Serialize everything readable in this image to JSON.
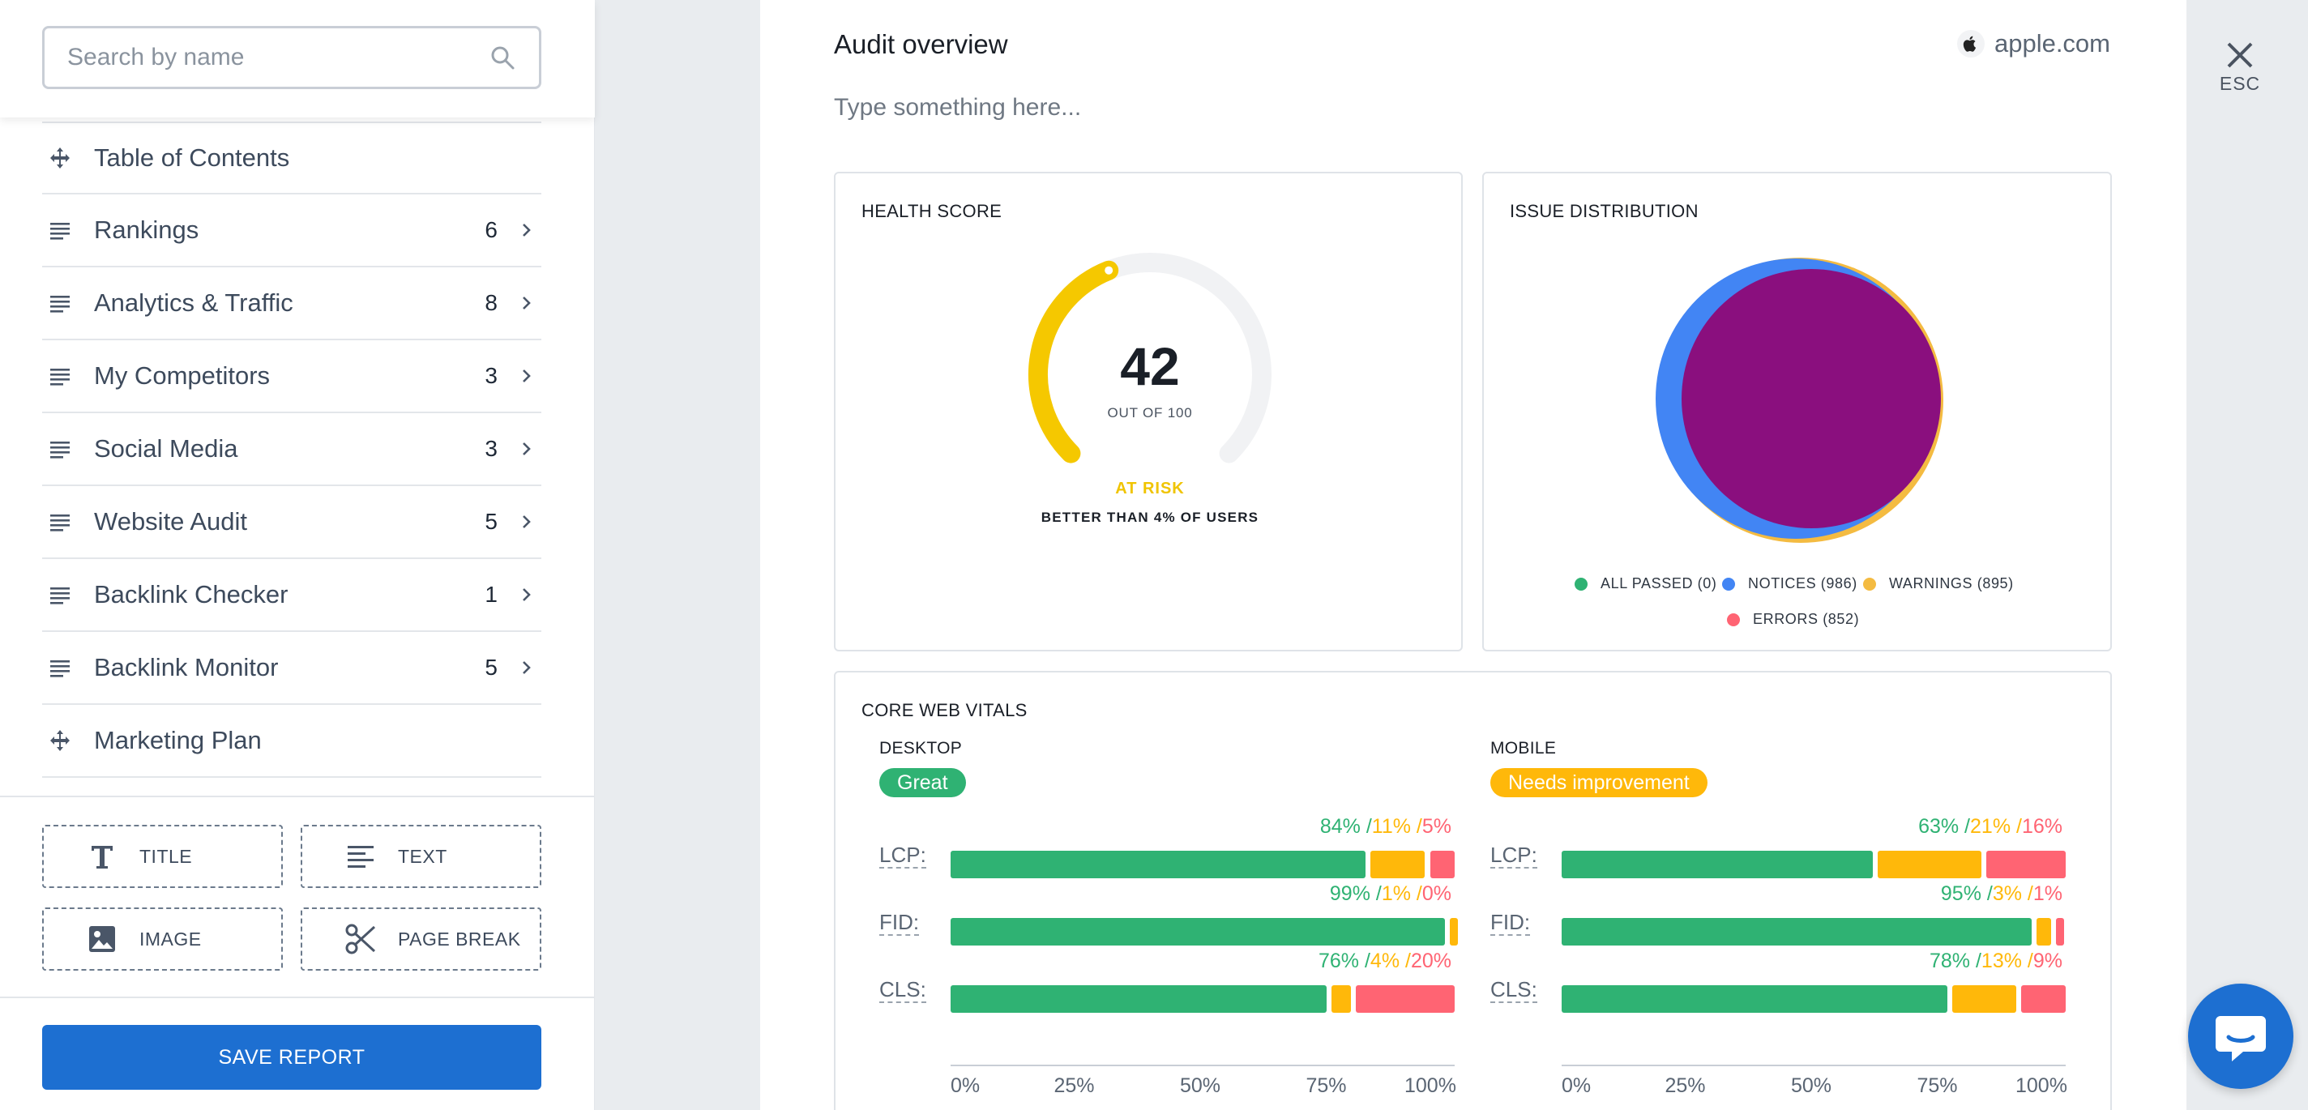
{
  "search": {
    "placeholder": "Search by name"
  },
  "sidebar": {
    "items": [
      {
        "label": "Table of Contents",
        "count": "",
        "icon": "move-icon"
      },
      {
        "label": "Rankings",
        "count": "6",
        "icon": "lines-icon"
      },
      {
        "label": "Analytics & Traffic",
        "count": "8",
        "icon": "lines-icon"
      },
      {
        "label": "My Competitors",
        "count": "3",
        "icon": "lines-icon"
      },
      {
        "label": "Social Media",
        "count": "3",
        "icon": "lines-icon"
      },
      {
        "label": "Website Audit",
        "count": "5",
        "icon": "lines-icon"
      },
      {
        "label": "Backlink Checker",
        "count": "1",
        "icon": "lines-icon"
      },
      {
        "label": "Backlink Monitor",
        "count": "5",
        "icon": "lines-icon"
      },
      {
        "label": "Marketing Plan",
        "count": "",
        "icon": "move-icon"
      }
    ],
    "blocks": {
      "title": "TITLE",
      "text": "TEXT",
      "image": "IMAGE",
      "page_break": "PAGE BREAK"
    },
    "save_label": "SAVE REPORT"
  },
  "panel": {
    "title": "Audit overview",
    "domain": "apple.com",
    "description_placeholder": "Type something here...",
    "close_label": "ESC"
  },
  "health": {
    "title": "HEALTH SCORE",
    "score": "42",
    "out_of": "OUT OF 100",
    "score_value": 42,
    "score_max": 100,
    "status": "AT RISK",
    "comparison": "BETTER THAN 4% OF USERS",
    "gauge_color": "#f5c800",
    "track_color": "#f1f2f4"
  },
  "issues": {
    "title": "ISSUE DISTRIBUTION",
    "legend": [
      {
        "label": "ALL PASSED (0)",
        "color": "#2fb273",
        "value": 0
      },
      {
        "label": "NOTICES (986)",
        "color": "#4285f4",
        "value": 986
      },
      {
        "label": "WARNINGS (895)",
        "color": "#f4bb41",
        "value": 895
      },
      {
        "label": "ERRORS (852)",
        "color": "#ff6473",
        "value": 852
      }
    ],
    "pie_fill_color": "#8a0f7e"
  },
  "cwv": {
    "title": "CORE WEB VITALS",
    "colors": {
      "good": "#2fb273",
      "needs": "#ffb80a",
      "poor": "#ff6473"
    },
    "desktop": {
      "title": "DESKTOP",
      "badge": "Great",
      "badge_color": "#2fb273",
      "metrics": [
        {
          "name": "LCP:",
          "good": 84,
          "needs": 11,
          "poor": 5,
          "good_label": "84% /",
          "needs_label": "11% /",
          "poor_label": "5%"
        },
        {
          "name": "FID:",
          "good": 99,
          "needs": 1,
          "poor": 0,
          "good_label": "99% /",
          "needs_label": "1% /",
          "poor_label": "0%"
        },
        {
          "name": "CLS:",
          "good": 76,
          "needs": 4,
          "poor": 20,
          "good_label": "76% /",
          "needs_label": "4% /",
          "poor_label": "20%"
        }
      ]
    },
    "mobile": {
      "title": "MOBILE",
      "badge": "Needs improvement",
      "badge_color": "#ffb80a",
      "metrics": [
        {
          "name": "LCP:",
          "good": 63,
          "needs": 21,
          "poor": 16,
          "good_label": "63% /",
          "needs_label": "21% /",
          "poor_label": "16%"
        },
        {
          "name": "FID:",
          "good": 95,
          "needs": 3,
          "poor": 1,
          "good_label": "95% /",
          "needs_label": "3% /",
          "poor_label": "1%"
        },
        {
          "name": "CLS:",
          "good": 78,
          "needs": 13,
          "poor": 9,
          "good_label": "78% /",
          "needs_label": "13% /",
          "poor_label": "9%"
        }
      ]
    },
    "axis_labels": [
      "0%",
      "25%",
      "50%",
      "75%",
      "100%"
    ]
  }
}
